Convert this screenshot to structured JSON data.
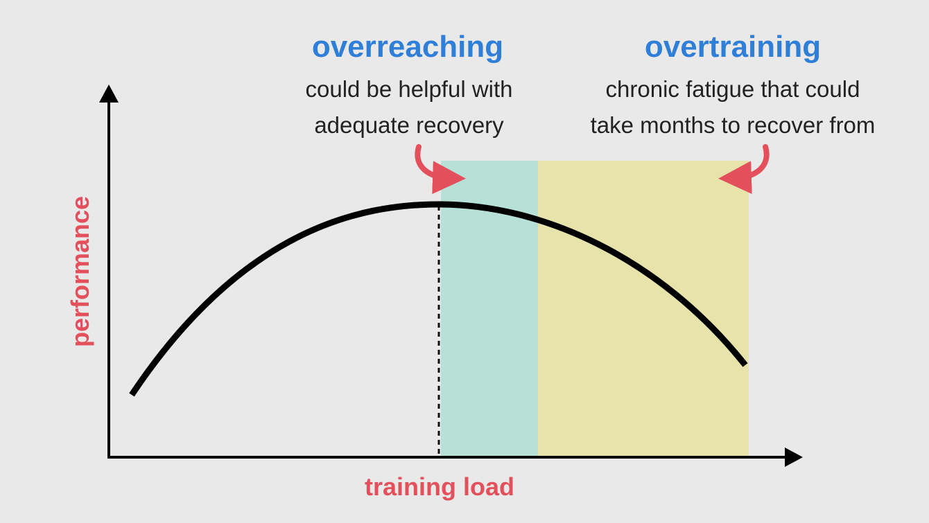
{
  "y_axis_label": "performance",
  "x_axis_label": "training load",
  "annotations": [
    {
      "title": "overreaching",
      "lines": [
        "could be helpful with",
        "adequate recovery"
      ]
    },
    {
      "title": "overtraining",
      "lines": [
        "chronic fatigue that could",
        "take months to recover from"
      ]
    }
  ]
}
